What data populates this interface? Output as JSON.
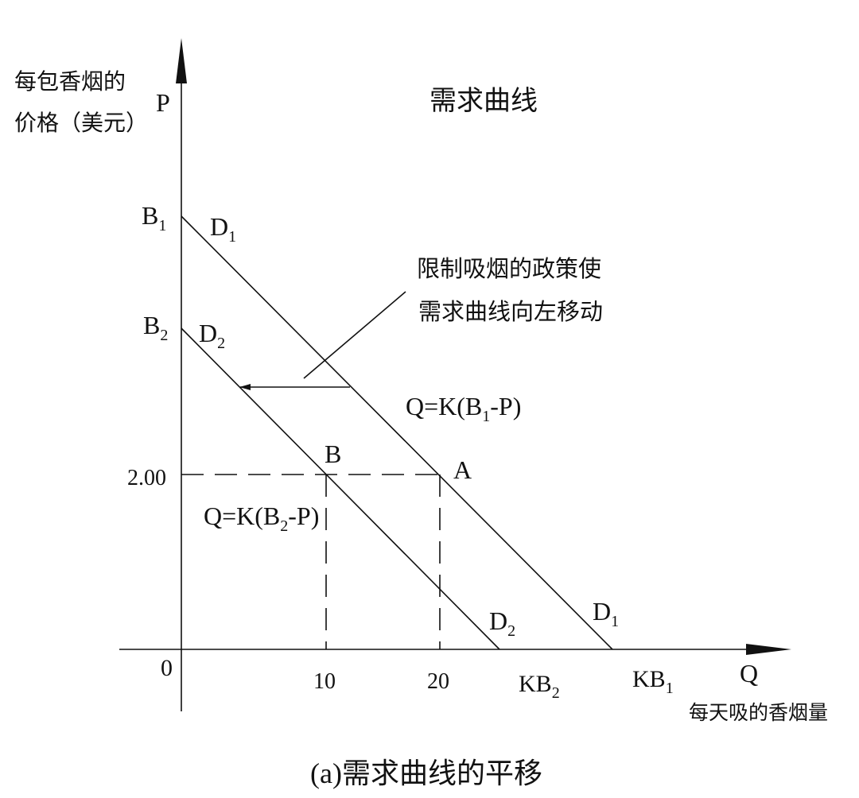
{
  "title": "需求曲线",
  "caption": "(a)需求曲线的平移",
  "y_axis": {
    "symbol": "P",
    "label_line1": "每包香烟的",
    "label_line2": "价格（美元）",
    "tick": "2.00"
  },
  "x_axis": {
    "symbol": "Q",
    "label": "每天吸的香烟量",
    "origin": "0",
    "ticks": [
      "10",
      "20"
    ]
  },
  "intercepts": {
    "b1": {
      "base": "B",
      "sub": "1"
    },
    "b2": {
      "base": "B",
      "sub": "2"
    },
    "kb1": {
      "base": "KB",
      "sub": "1"
    },
    "kb2": {
      "base": "KB",
      "sub": "2"
    }
  },
  "curves": {
    "d1": {
      "base": "D",
      "sub": "1",
      "equation_pre": "Q=K(B",
      "equation_sub": "1",
      "equation_post": "-P)"
    },
    "d2": {
      "base": "D",
      "sub": "2",
      "equation_pre": "Q=K(B",
      "equation_sub": "2",
      "equation_post": "-P)"
    }
  },
  "points": {
    "a": "A",
    "b": "B"
  },
  "annotation": {
    "line1": "限制吸烟的政策使",
    "line2": "需求曲线向左移动"
  },
  "chart_data": {
    "type": "line",
    "title": "需求曲线",
    "series": [
      {
        "name": "D1",
        "points": [
          {
            "Q": 20,
            "P": 2.0
          }
        ]
      },
      {
        "name": "D2",
        "points": [
          {
            "Q": 10,
            "P": 2.0
          }
        ]
      }
    ]
  }
}
